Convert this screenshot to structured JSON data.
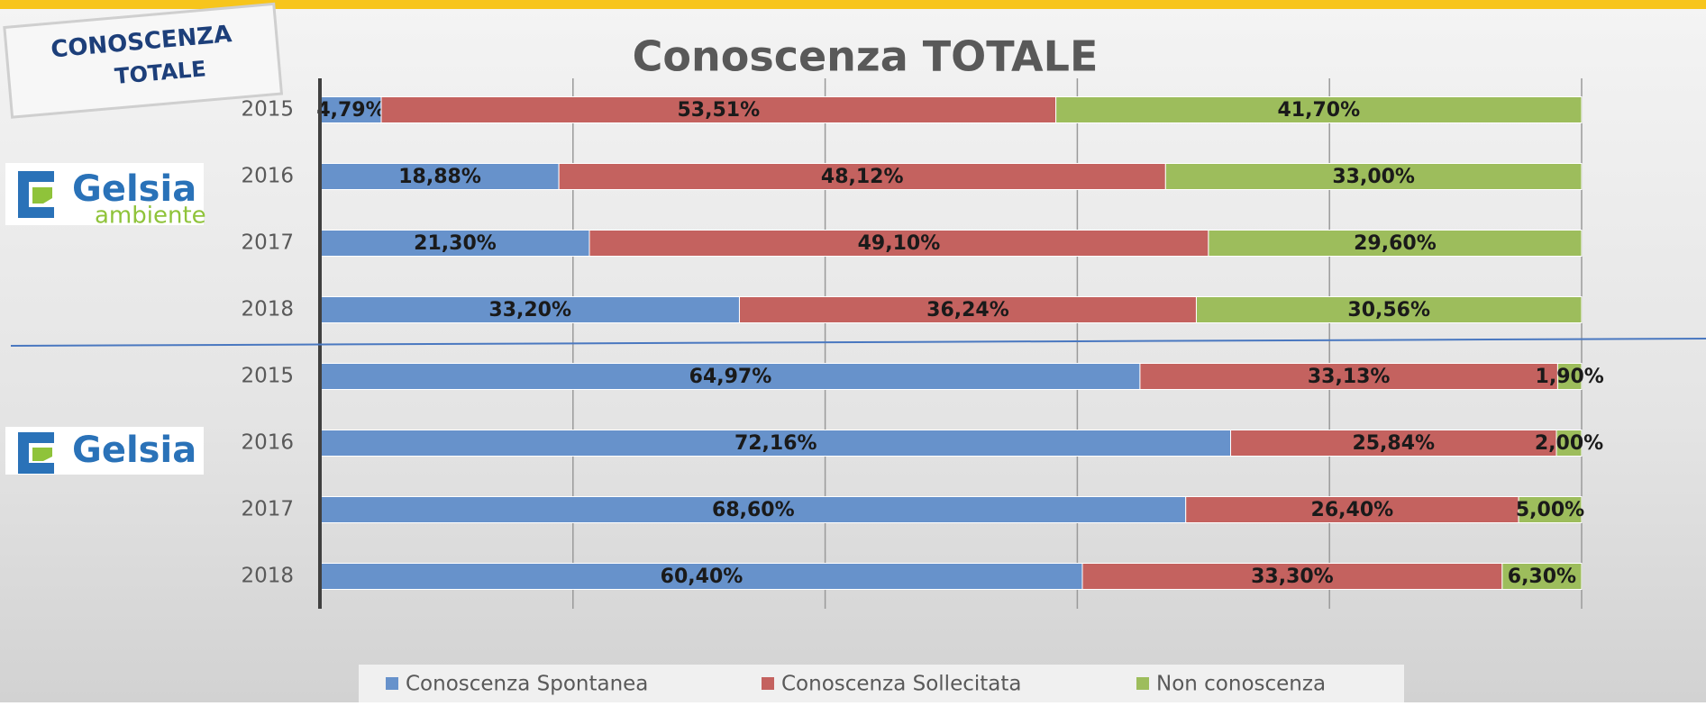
{
  "chart_data": {
    "type": "stacked_bar_horizontal",
    "title": "Conoscenza TOTALE",
    "categories": [
      "2015",
      "2016",
      "2017",
      "2018",
      "2015",
      "2016",
      "2017",
      "2018"
    ],
    "series": [
      {
        "name": "Conoscenza Spontanea",
        "color": "#6792cb",
        "values": [
          4.79,
          18.88,
          21.3,
          33.2,
          64.97,
          72.16,
          68.6,
          60.4
        ],
        "value_labels": [
          "4,79%",
          "18,88%",
          "21,30%",
          "33,20%",
          "64,97%",
          "72,16%",
          "68,60%",
          "60,40%"
        ]
      },
      {
        "name": "Conoscenza Sollecitata",
        "color": "#c4625f",
        "values": [
          53.51,
          48.12,
          49.1,
          36.24,
          33.13,
          25.84,
          26.4,
          33.3
        ],
        "value_labels": [
          "53,51%",
          "48,12%",
          "49,10%",
          "36,24%",
          "33,13%",
          "25,84%",
          "26,40%",
          "33,30%"
        ]
      },
      {
        "name": "Non conoscenza",
        "color": "#9dbd5c",
        "values": [
          41.7,
          33.0,
          29.6,
          30.56,
          1.9,
          2.0,
          5.0,
          6.3
        ],
        "value_labels": [
          "41,70%",
          "33,00%",
          "29,60%",
          "30,56%",
          "1,90%",
          "2,00%",
          "5,00%",
          "6,30%"
        ]
      }
    ],
    "xlim": [
      0,
      100
    ],
    "xticks": [
      0,
      20,
      40,
      60,
      80,
      100
    ],
    "grid": true,
    "legend": "bottom"
  },
  "badge": [
    "CONOSCENZA",
    "TOTALE"
  ],
  "logos": [
    {
      "name": "Gelsia",
      "sub": "ambiente"
    },
    {
      "name": "Gelsia"
    }
  ]
}
